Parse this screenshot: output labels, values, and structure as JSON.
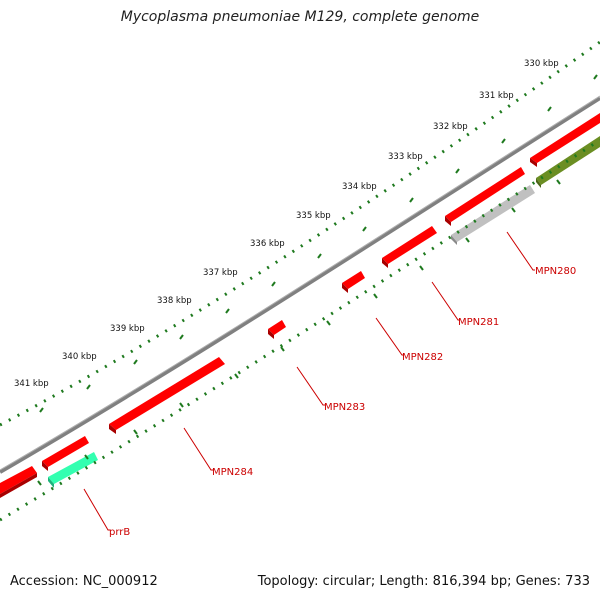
{
  "title": "Mycoplasma pneumoniae M129, complete genome",
  "accession": "Accession: NC_000912",
  "topology": "Topology: circular; Length: 816,394 bp; Genes: 733",
  "tick_labels": [
    "330 kbp",
    "331 kbp",
    "332 kbp",
    "333 kbp",
    "334 kbp",
    "335 kbp",
    "336 kbp",
    "337 kbp",
    "338 kbp",
    "339 kbp",
    "340 kbp",
    "341 kbp"
  ],
  "gene_labels": [
    "MPN280",
    "MPN281",
    "MPN282",
    "MPN283",
    "MPN284",
    "prrB"
  ],
  "colors": {
    "cds": "#ff0000",
    "cds_shade": "#a80000",
    "rrna": "#33ffb0",
    "trna_other": "#6b8e23",
    "misc": "#c0c0c0",
    "backbone": "#808080",
    "tick": "#1f7a1f",
    "label": "#cc0000"
  }
}
